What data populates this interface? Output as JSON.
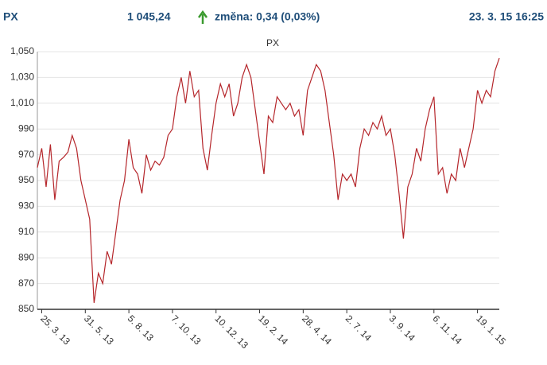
{
  "header": {
    "symbol": "PX",
    "price": "1 045,24",
    "change": "změna: 0,34 (0,03%)",
    "time": "23. 3. 15 16:25"
  },
  "chart_data": {
    "type": "line",
    "title": "PX",
    "categories": [
      null,
      "25. 3. 13",
      null,
      null,
      null,
      null,
      null,
      null,
      null,
      null,
      null,
      "31. 5. 13",
      null,
      null,
      null,
      null,
      null,
      null,
      null,
      null,
      null,
      "5. 8. 13",
      null,
      null,
      null,
      null,
      null,
      null,
      null,
      null,
      null,
      "7. 10. 13",
      null,
      null,
      null,
      null,
      null,
      null,
      null,
      null,
      null,
      "10. 12. 13",
      null,
      null,
      null,
      null,
      null,
      null,
      null,
      null,
      null,
      "19. 2. 14",
      null,
      null,
      null,
      null,
      null,
      null,
      null,
      null,
      null,
      "28. 4. 14",
      null,
      null,
      null,
      null,
      null,
      null,
      null,
      null,
      null,
      "2. 7. 14",
      null,
      null,
      null,
      null,
      null,
      null,
      null,
      null,
      null,
      "3. 9. 14",
      null,
      null,
      null,
      null,
      null,
      null,
      null,
      null,
      null,
      "6. 11. 14",
      null,
      null,
      null,
      null,
      null,
      null,
      null,
      null,
      null,
      "19. 1. 15",
      null,
      null,
      null,
      null,
      null
    ],
    "series": [
      {
        "name": "PX",
        "color": "#b5262b",
        "values": [
          960,
          975,
          945,
          978,
          935,
          965,
          968,
          972,
          985,
          975,
          950,
          935,
          920,
          855,
          878,
          870,
          895,
          885,
          910,
          935,
          950,
          982,
          960,
          955,
          940,
          970,
          958,
          965,
          962,
          968,
          985,
          990,
          1015,
          1030,
          1010,
          1035,
          1015,
          1020,
          975,
          958,
          985,
          1010,
          1025,
          1015,
          1025,
          1000,
          1010,
          1030,
          1040,
          1030,
          1005,
          980,
          955,
          1000,
          995,
          1015,
          1010,
          1005,
          1010,
          1000,
          1005,
          985,
          1020,
          1030,
          1040,
          1035,
          1020,
          995,
          970,
          935,
          955,
          950,
          955,
          945,
          975,
          990,
          985,
          995,
          990,
          1000,
          985,
          990,
          970,
          940,
          905,
          945,
          955,
          975,
          965,
          990,
          1005,
          1015,
          955,
          960,
          940,
          955,
          950,
          975,
          960,
          975,
          990,
          1020,
          1010,
          1020,
          1015,
          1035,
          1045
        ]
      }
    ],
    "ylim": [
      850,
      1050
    ],
    "yticks": [
      850,
      870,
      890,
      910,
      930,
      950,
      970,
      990,
      {
        "value": 1010,
        "label": "1,010"
      },
      {
        "value": 1030,
        "label": "1,030"
      },
      {
        "value": 1050,
        "label": "1,050"
      }
    ],
    "grid": true
  }
}
